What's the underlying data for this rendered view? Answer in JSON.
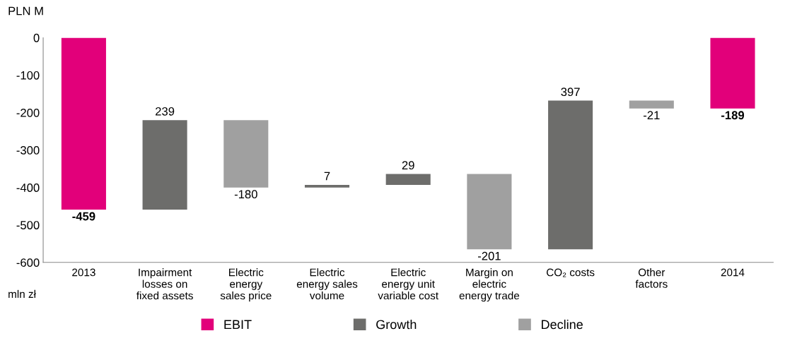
{
  "chart_data": {
    "type": "bar",
    "ylabel": "PLN M",
    "categories": [
      "2013",
      "Impairment\nlosses on\nfixed assets",
      "Electric\nenergy\nsales price",
      "Electric\nenergy sales\nvolume",
      "Electric\nenergy unit\nvariable cost",
      "Margin on\nelectric\nenergy trade",
      "CO₂ costs",
      "Other\nfactors",
      "2014"
    ],
    "series": [
      {
        "name": "EBIT",
        "color": "#e2007a",
        "values": [
          -459,
          null,
          null,
          null,
          null,
          null,
          null,
          null,
          -189
        ],
        "base": [
          0,
          null,
          null,
          null,
          null,
          null,
          null,
          null,
          0
        ]
      },
      {
        "name": "Growth",
        "color": "#6d6d6b",
        "values": [
          null,
          239,
          null,
          7,
          29,
          null,
          397,
          null,
          null
        ],
        "base": [
          null,
          -459,
          null,
          -400,
          -393,
          null,
          -565,
          null,
          null
        ]
      },
      {
        "name": "Decline",
        "color": "#a0a0a0",
        "values": [
          null,
          null,
          -180,
          null,
          null,
          -201,
          null,
          -21,
          null
        ],
        "base": [
          null,
          null,
          -220,
          null,
          null,
          -364,
          null,
          -168,
          null
        ]
      }
    ],
    "ylim": [
      -600,
      0
    ],
    "yticks": [
      0,
      -100,
      -200,
      -300,
      -400,
      -500,
      -600
    ],
    "data_labels": true,
    "legend": "bottom",
    "grid": false,
    "annotations": [
      "mln zł"
    ]
  }
}
